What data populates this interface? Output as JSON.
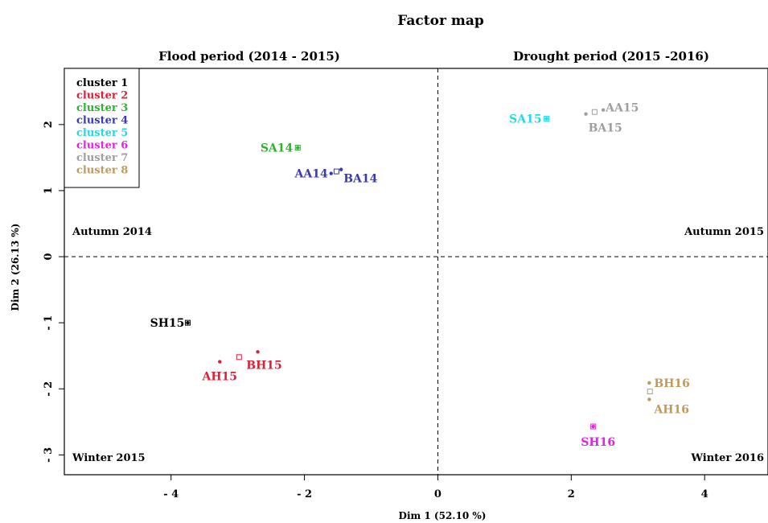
{
  "chart_data": {
    "type": "scatter",
    "title": "Factor map",
    "panel_titles": {
      "left": "Flood period (2014 - 2015)",
      "right": "Drought period (2015 -2016)"
    },
    "xlabel": "Dim 1 (52.10 %)",
    "ylabel": "Dim 2 (26.13 %)",
    "xlim": [
      -5.6,
      4.95
    ],
    "ylim": [
      -3.3,
      2.85
    ],
    "xticks": [
      -4,
      -2,
      0,
      2,
      4
    ],
    "yticks": [
      -3,
      -2,
      -1,
      0,
      1,
      2
    ],
    "xtick_labels": [
      "- 4",
      "- 2",
      "0",
      "2",
      "4"
    ],
    "ytick_labels": [
      "- 3",
      "- 2",
      "- 1",
      "0",
      "1",
      "2"
    ],
    "grid": false,
    "reference_lines": {
      "x": 0,
      "y": 0,
      "style": "dashed"
    },
    "quadrant_labels": {
      "top_left": "Autumn 2014",
      "top_right": "Autumn 2015",
      "bottom_left": "Winter 2015",
      "bottom_right": "Winter 2016"
    },
    "legend": {
      "position": "top-left",
      "entries": [
        {
          "label": "cluster 1",
          "color": "#000000"
        },
        {
          "label": "cluster 2",
          "color": "#DF1F36"
        },
        {
          "label": "cluster 3",
          "color": "#2DB32D"
        },
        {
          "label": "cluster 4",
          "color": "#3A3AB0"
        },
        {
          "label": "cluster 5",
          "color": "#24D8E5"
        },
        {
          "label": "cluster 6",
          "color": "#E024E0"
        },
        {
          "label": "cluster 7",
          "color": "#9E9E9E"
        },
        {
          "label": "cluster 8",
          "color": "#BC9B5C"
        }
      ]
    },
    "centroids": [
      {
        "cluster": 1,
        "x": -3.75,
        "y": -1.0,
        "color": "#000000"
      },
      {
        "cluster": 2,
        "x": -2.98,
        "y": -1.52,
        "color": "#DF1F36"
      },
      {
        "cluster": 3,
        "x": -2.1,
        "y": 1.65,
        "color": "#2DB32D"
      },
      {
        "cluster": 4,
        "x": -1.52,
        "y": 1.29,
        "color": "#3A3AB0"
      },
      {
        "cluster": 5,
        "x": 1.63,
        "y": 2.09,
        "color": "#24D8E5"
      },
      {
        "cluster": 6,
        "x": 2.33,
        "y": -2.57,
        "color": "#E024E0"
      },
      {
        "cluster": 7,
        "x": 2.35,
        "y": 2.19,
        "color": "#9E9E9E"
      },
      {
        "cluster": 8,
        "x": 3.18,
        "y": -2.04,
        "color": "#BC9B5C"
      }
    ],
    "points": [
      {
        "label": "SH15",
        "x": -3.75,
        "y": -1.0,
        "cluster": 1,
        "color": "#000000",
        "label_dx": -4,
        "label_dy": 0,
        "anchor": "end"
      },
      {
        "label": "AH15",
        "x": -3.27,
        "y": -1.59,
        "cluster": 2,
        "color": "#DF1F36",
        "label_dx": 0,
        "label_dy": 18,
        "anchor": "middle"
      },
      {
        "label": "BH15",
        "x": -2.7,
        "y": -1.44,
        "cluster": 2,
        "color": "#DF1F36",
        "label_dx": 8,
        "label_dy": 16,
        "anchor": "middle"
      },
      {
        "label": "SA14",
        "x": -2.1,
        "y": 1.65,
        "cluster": 3,
        "color": "#2DB32D",
        "label_dx": -6,
        "label_dy": 0,
        "anchor": "end"
      },
      {
        "label": "AA14",
        "x": -1.6,
        "y": 1.26,
        "cluster": 4,
        "color": "#3A3AB0",
        "label_dx": -4,
        "label_dy": 0,
        "anchor": "end"
      },
      {
        "label": "BA14",
        "x": -1.45,
        "y": 1.32,
        "cluster": 4,
        "color": "#3A3AB0",
        "label_dx": 3,
        "label_dy": 11,
        "anchor": "start"
      },
      {
        "label": "SA15",
        "x": 1.63,
        "y": 2.09,
        "cluster": 5,
        "color": "#24D8E5",
        "label_dx": -6,
        "label_dy": 0,
        "anchor": "end"
      },
      {
        "label": "AA15",
        "x": 2.48,
        "y": 2.22,
        "cluster": 7,
        "color": "#9E9E9E",
        "label_dx": 3,
        "label_dy": -3,
        "anchor": "start"
      },
      {
        "label": "BA15",
        "x": 2.22,
        "y": 2.16,
        "cluster": 7,
        "color": "#9E9E9E",
        "label_dx": 3,
        "label_dy": 17,
        "anchor": "start"
      },
      {
        "label": "SH16",
        "x": 2.33,
        "y": -2.57,
        "cluster": 6,
        "color": "#E024E0",
        "label_dx": 6,
        "label_dy": 19,
        "anchor": "middle"
      },
      {
        "label": "BH16",
        "x": 3.17,
        "y": -1.91,
        "cluster": 8,
        "color": "#BC9B5C",
        "label_dx": 6,
        "label_dy": 0,
        "anchor": "start"
      },
      {
        "label": "AH16",
        "x": 3.17,
        "y": -2.16,
        "cluster": 8,
        "color": "#BC9B5C",
        "label_dx": 6,
        "label_dy": 12,
        "anchor": "start"
      }
    ]
  }
}
